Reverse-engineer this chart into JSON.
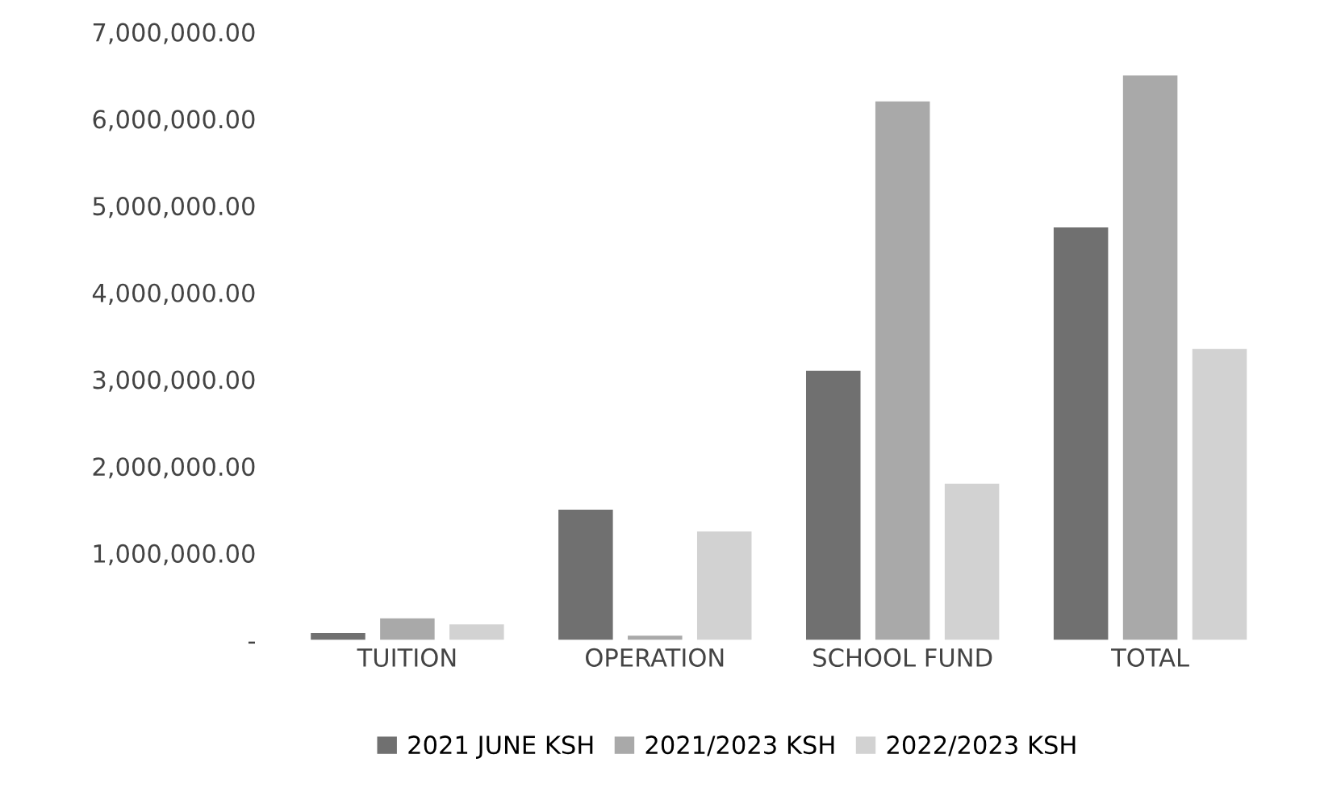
{
  "chart_data": {
    "type": "bar",
    "categories": [
      "TUITION",
      "OPERATION",
      "SCHOOL FUND",
      "TOTAL"
    ],
    "series": [
      {
        "name": "2021 JUNE KSH",
        "color": "#707070",
        "values": [
          80000,
          1500000,
          3100000,
          4750000
        ]
      },
      {
        "name": "2021/2023 KSH",
        "color": "#a9a9a9",
        "values": [
          250000,
          50000,
          6200000,
          6500000
        ]
      },
      {
        "name": "2022/2023 KSH",
        "color": "#d2d2d2",
        "values": [
          180000,
          1250000,
          1800000,
          3350000
        ]
      }
    ],
    "ylim": [
      0,
      7000000
    ],
    "yticks": [
      {
        "value": 0,
        "label": "-"
      },
      {
        "value": 1000000,
        "label": "1,000,000.00"
      },
      {
        "value": 2000000,
        "label": "2,000,000.00"
      },
      {
        "value": 3000000,
        "label": "3,000,000.00"
      },
      {
        "value": 4000000,
        "label": "4,000,000.00"
      },
      {
        "value": 5000000,
        "label": "5,000,000.00"
      },
      {
        "value": 6000000,
        "label": "6,000,000.00"
      },
      {
        "value": 7000000,
        "label": "7,000,000.00"
      }
    ],
    "grid": false,
    "legend": "bottom"
  }
}
